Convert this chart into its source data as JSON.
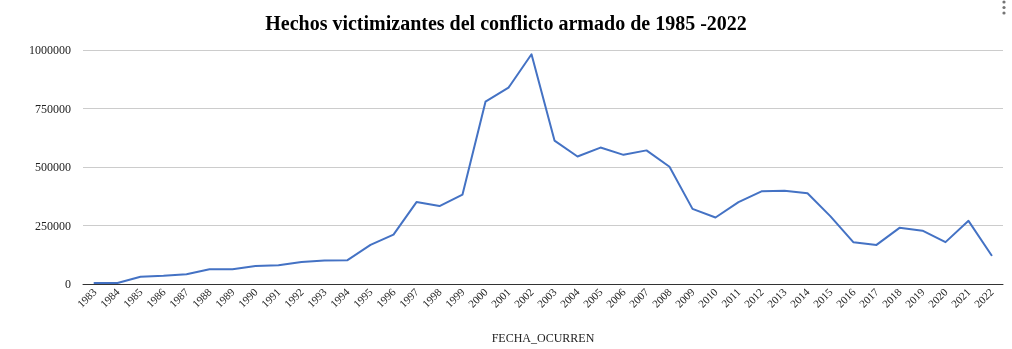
{
  "chart_data": {
    "type": "line",
    "title": "Hechos victimizantes del conflicto armado de 1985 -2022",
    "xlabel": "FECHA_OCURREN",
    "categories": [
      "1983",
      "1984",
      "1985",
      "1986",
      "1987",
      "1988",
      "1989",
      "1990",
      "1991",
      "1992",
      "1993",
      "1994",
      "1995",
      "1996",
      "1997",
      "1998",
      "1999",
      "2000",
      "2001",
      "2002",
      "2003",
      "2004",
      "2005",
      "2006",
      "2007",
      "2008",
      "2009",
      "2010",
      "2011",
      "2012",
      "2013",
      "2014",
      "2015",
      "2016",
      "2017",
      "2018",
      "2019",
      "2020",
      "2021",
      "2022"
    ],
    "series": [
      {
        "color": "#4472c4",
        "values": [
          4000,
          4000,
          31000,
          35000,
          42000,
          63000,
          63000,
          77000,
          80000,
          94000,
          100000,
          102000,
          167000,
          211000,
          350000,
          333000,
          382000,
          779000,
          839000,
          982000,
          613000,
          545000,
          583000,
          552000,
          571000,
          501000,
          321000,
          284000,
          350000,
          396000,
          399000,
          388000,
          289000,
          178000,
          167000,
          240000,
          228000,
          179000,
          270000,
          123000
        ]
      }
    ],
    "ylim": [
      0,
      1000000
    ],
    "yticks": [
      0,
      250000,
      500000,
      750000,
      1000000
    ],
    "grid": "y",
    "marker": "none",
    "line_style": "solid"
  }
}
